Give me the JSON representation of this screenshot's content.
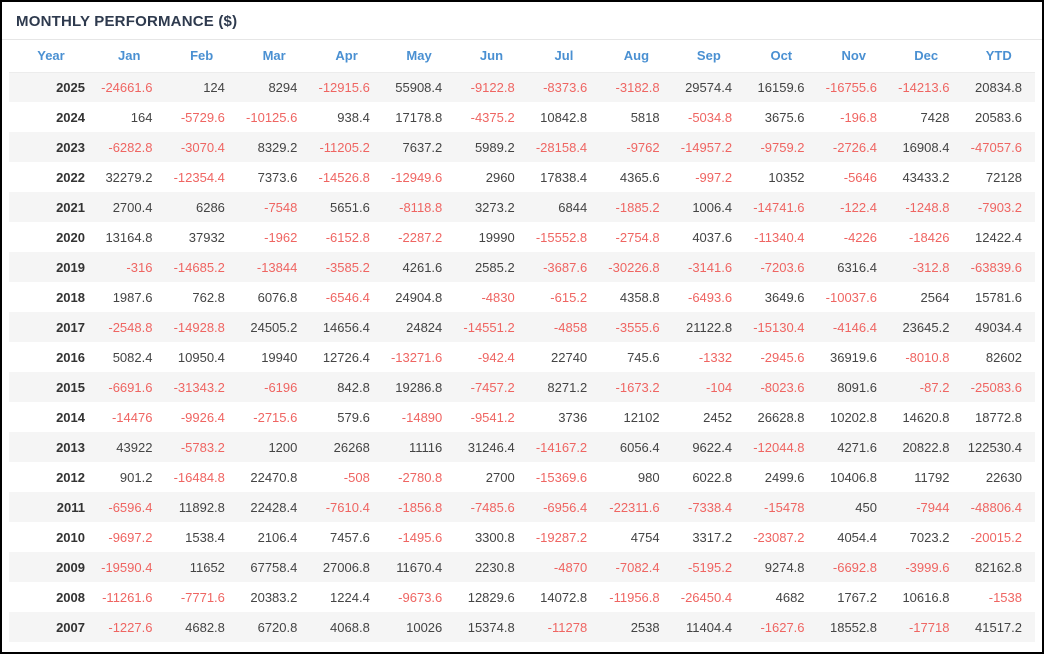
{
  "panel": {
    "title": "MONTHLY PERFORMANCE ($)"
  },
  "colors": {
    "title": "#2e3a4e",
    "header_blue": "#4a90d2",
    "negative": "#ef6562",
    "positive_text": "#444444",
    "stripe": "#f5f5f5",
    "frame_border": "#000000"
  },
  "chart_data": {
    "type": "table",
    "title": "MONTHLY PERFORMANCE ($)",
    "columns": [
      "Year",
      "Jan",
      "Feb",
      "Mar",
      "Apr",
      "May",
      "Jun",
      "Jul",
      "Aug",
      "Sep",
      "Oct",
      "Nov",
      "Dec",
      "YTD"
    ],
    "rows": [
      {
        "year": "2025",
        "values": [
          "-24661.6",
          "124",
          "8294",
          "-12915.6",
          "55908.4",
          "-9122.8",
          "-8373.6",
          "-3182.8",
          "29574.4",
          "16159.6",
          "-16755.6",
          "-14213.6",
          "20834.8"
        ]
      },
      {
        "year": "2024",
        "values": [
          "164",
          "-5729.6",
          "-10125.6",
          "938.4",
          "17178.8",
          "-4375.2",
          "10842.8",
          "5818",
          "-5034.8",
          "3675.6",
          "-196.8",
          "7428",
          "20583.6"
        ]
      },
      {
        "year": "2023",
        "values": [
          "-6282.8",
          "-3070.4",
          "8329.2",
          "-11205.2",
          "7637.2",
          "5989.2",
          "-28158.4",
          "-9762",
          "-14957.2",
          "-9759.2",
          "-2726.4",
          "16908.4",
          "-47057.6"
        ]
      },
      {
        "year": "2022",
        "values": [
          "32279.2",
          "-12354.4",
          "7373.6",
          "-14526.8",
          "-12949.6",
          "2960",
          "17838.4",
          "4365.6",
          "-997.2",
          "10352",
          "-5646",
          "43433.2",
          "72128"
        ]
      },
      {
        "year": "2021",
        "values": [
          "2700.4",
          "6286",
          "-7548",
          "5651.6",
          "-8118.8",
          "3273.2",
          "6844",
          "-1885.2",
          "1006.4",
          "-14741.6",
          "-122.4",
          "-1248.8",
          "-7903.2"
        ]
      },
      {
        "year": "2020",
        "values": [
          "13164.8",
          "37932",
          "-1962",
          "-6152.8",
          "-2287.2",
          "19990",
          "-15552.8",
          "-2754.8",
          "4037.6",
          "-11340.4",
          "-4226",
          "-18426",
          "12422.4"
        ]
      },
      {
        "year": "2019",
        "values": [
          "-316",
          "-14685.2",
          "-13844",
          "-3585.2",
          "4261.6",
          "2585.2",
          "-3687.6",
          "-30226.8",
          "-3141.6",
          "-7203.6",
          "6316.4",
          "-312.8",
          "-63839.6"
        ]
      },
      {
        "year": "2018",
        "values": [
          "1987.6",
          "762.8",
          "6076.8",
          "-6546.4",
          "24904.8",
          "-4830",
          "-615.2",
          "4358.8",
          "-6493.6",
          "3649.6",
          "-10037.6",
          "2564",
          "15781.6"
        ]
      },
      {
        "year": "2017",
        "values": [
          "-2548.8",
          "-14928.8",
          "24505.2",
          "14656.4",
          "24824",
          "-14551.2",
          "-4858",
          "-3555.6",
          "21122.8",
          "-15130.4",
          "-4146.4",
          "23645.2",
          "49034.4"
        ]
      },
      {
        "year": "2016",
        "values": [
          "5082.4",
          "10950.4",
          "19940",
          "12726.4",
          "-13271.6",
          "-942.4",
          "22740",
          "745.6",
          "-1332",
          "-2945.6",
          "36919.6",
          "-8010.8",
          "82602"
        ]
      },
      {
        "year": "2015",
        "values": [
          "-6691.6",
          "-31343.2",
          "-6196",
          "842.8",
          "19286.8",
          "-7457.2",
          "8271.2",
          "-1673.2",
          "-104",
          "-8023.6",
          "8091.6",
          "-87.2",
          "-25083.6"
        ]
      },
      {
        "year": "2014",
        "values": [
          "-14476",
          "-9926.4",
          "-2715.6",
          "579.6",
          "-14890",
          "-9541.2",
          "3736",
          "12102",
          "2452",
          "26628.8",
          "10202.8",
          "14620.8",
          "18772.8"
        ]
      },
      {
        "year": "2013",
        "values": [
          "43922",
          "-5783.2",
          "1200",
          "26268",
          "11116",
          "31246.4",
          "-14167.2",
          "6056.4",
          "9622.4",
          "-12044.8",
          "4271.6",
          "20822.8",
          "122530.4"
        ]
      },
      {
        "year": "2012",
        "values": [
          "901.2",
          "-16484.8",
          "22470.8",
          "-508",
          "-2780.8",
          "2700",
          "-15369.6",
          "980",
          "6022.8",
          "2499.6",
          "10406.8",
          "11792",
          "22630"
        ]
      },
      {
        "year": "2011",
        "values": [
          "-6596.4",
          "11892.8",
          "22428.4",
          "-7610.4",
          "-1856.8",
          "-7485.6",
          "-6956.4",
          "-22311.6",
          "-7338.4",
          "-15478",
          "450",
          "-7944",
          "-48806.4"
        ]
      },
      {
        "year": "2010",
        "values": [
          "-9697.2",
          "1538.4",
          "2106.4",
          "7457.6",
          "-1495.6",
          "3300.8",
          "-19287.2",
          "4754",
          "3317.2",
          "-23087.2",
          "4054.4",
          "7023.2",
          "-20015.2"
        ]
      },
      {
        "year": "2009",
        "values": [
          "-19590.4",
          "11652",
          "67758.4",
          "27006.8",
          "11670.4",
          "2230.8",
          "-4870",
          "-7082.4",
          "-5195.2",
          "9274.8",
          "-6692.8",
          "-3999.6",
          "82162.8"
        ]
      },
      {
        "year": "2008",
        "values": [
          "-11261.6",
          "-7771.6",
          "20383.2",
          "1224.4",
          "-9673.6",
          "12829.6",
          "14072.8",
          "-11956.8",
          "-26450.4",
          "4682",
          "1767.2",
          "10616.8",
          "-1538"
        ]
      },
      {
        "year": "2007",
        "values": [
          "-1227.6",
          "4682.8",
          "6720.8",
          "4068.8",
          "10026",
          "15374.8",
          "-11278",
          "2538",
          "11404.4",
          "-1627.6",
          "18552.8",
          "-17718",
          "41517.2"
        ]
      }
    ]
  }
}
